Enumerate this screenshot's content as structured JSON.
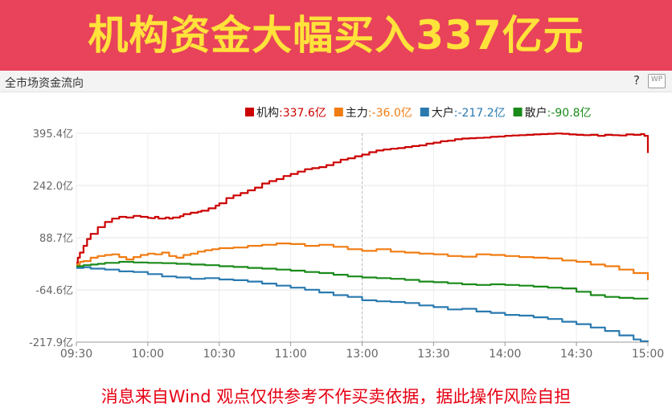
{
  "banner": {
    "title": "机构资金大幅买入337亿元"
  },
  "chart_header": {
    "title": "全市场资金流向",
    "help_label": "?",
    "wp_label": "WP"
  },
  "footer": {
    "text": "消息来自Wind  观点仅供参考不作买卖依据，据此操作风险自担"
  },
  "chart_data": {
    "type": "line",
    "title": "",
    "xlabel": "",
    "ylabel": "",
    "y_ticks": [
      "395.4亿",
      "242.0亿",
      "88.7亿",
      "-64.6亿",
      "-217.9亿"
    ],
    "y_tick_values": [
      395.4,
      242.0,
      88.7,
      -64.6,
      -217.9
    ],
    "ylim": [
      -217.9,
      395.4
    ],
    "x_ticks": [
      "09:30",
      "10:00",
      "10:30",
      "11:00",
      "13:00",
      "13:30",
      "14:00",
      "14:30",
      "15:00"
    ],
    "grid": true,
    "legend_position": "top-right",
    "legend": [
      {
        "name": "机构",
        "value_label": ":337.6亿",
        "color": "#cc0000"
      },
      {
        "name": "主力",
        "value_label": ":-36.0亿",
        "color": "#f07c12"
      },
      {
        "name": "大户",
        "value_label": ":-217.2亿",
        "color": "#2a7ab0"
      },
      {
        "name": "散户",
        "value_label": ":-90.8亿",
        "color": "#1a8a1a"
      }
    ],
    "series": [
      {
        "name": "机构",
        "color": "#cc0000",
        "x": [
          0,
          0.02,
          0.05,
          0.1,
          0.15,
          0.2,
          0.3,
          0.4,
          0.5,
          0.6,
          0.7,
          0.8,
          0.9,
          1.0,
          1.05,
          1.1,
          1.15,
          1.25,
          1.3,
          1.35,
          1.45,
          1.5,
          1.6,
          1.7,
          1.75,
          1.85,
          1.95,
          2.0,
          2.1,
          2.2,
          2.3,
          2.4,
          2.5,
          2.6,
          2.7,
          2.8,
          2.9,
          3.0,
          3.1,
          3.2,
          3.3,
          3.4,
          3.5,
          3.6,
          3.7,
          3.8,
          3.9,
          4.0,
          4.1,
          4.2,
          4.3,
          4.4,
          4.5,
          4.6,
          4.7,
          4.8,
          4.9,
          5.0,
          5.1,
          5.2,
          5.3,
          5.4,
          5.5,
          5.6,
          5.7,
          5.8,
          5.9,
          6.0,
          6.1,
          6.2,
          6.3,
          6.4,
          6.5,
          6.6,
          6.7,
          6.8,
          6.9,
          7.0,
          7.1,
          7.2,
          7.3,
          7.4,
          7.5,
          7.6,
          7.7,
          7.8,
          7.9,
          7.95,
          8.0
        ],
        "y": [
          15,
          30,
          45,
          65,
          85,
          100,
          120,
          135,
          145,
          150,
          148,
          153,
          150,
          147,
          146,
          150,
          145,
          148,
          145,
          148,
          152,
          158,
          162,
          165,
          168,
          175,
          183,
          190,
          205,
          213,
          220,
          228,
          236,
          248,
          255,
          261,
          270,
          276,
          283,
          290,
          293,
          296,
          302,
          310,
          318,
          322,
          328,
          333,
          340,
          345,
          348,
          350,
          352,
          355,
          358,
          360,
          365,
          368,
          372,
          374,
          378,
          380,
          381,
          382,
          383,
          385,
          386,
          388,
          389,
          390,
          391,
          392,
          393,
          394,
          395,
          394,
          392,
          391,
          390,
          391,
          388,
          391,
          390,
          389,
          392,
          391,
          393,
          388,
          337.6
        ]
      },
      {
        "name": "主力",
        "color": "#f07c12",
        "x": [
          0,
          0.05,
          0.1,
          0.2,
          0.3,
          0.4,
          0.5,
          0.6,
          0.7,
          0.8,
          0.9,
          1.0,
          1.1,
          1.2,
          1.3,
          1.4,
          1.5,
          1.6,
          1.7,
          1.8,
          1.9,
          2.0,
          2.2,
          2.4,
          2.6,
          2.8,
          3.0,
          3.2,
          3.4,
          3.6,
          3.8,
          4.0,
          4.2,
          4.4,
          4.6,
          4.8,
          5.0,
          5.2,
          5.4,
          5.6,
          5.8,
          6.0,
          6.2,
          6.4,
          6.6,
          6.8,
          7.0,
          7.2,
          7.4,
          7.6,
          7.8,
          8.0
        ],
        "y": [
          10,
          18,
          20,
          30,
          35,
          38,
          40,
          32,
          25,
          32,
          38,
          42,
          40,
          45,
          35,
          30,
          38,
          42,
          48,
          52,
          55,
          58,
          60,
          65,
          68,
          72,
          70,
          65,
          68,
          62,
          55,
          50,
          55,
          48,
          45,
          42,
          40,
          35,
          33,
          40,
          38,
          35,
          32,
          30,
          28,
          22,
          18,
          10,
          5,
          -5,
          -15,
          -36
        ]
      },
      {
        "name": "大户",
        "color": "#2a7ab0",
        "x": [
          0,
          0.1,
          0.2,
          0.4,
          0.6,
          0.8,
          1.0,
          1.2,
          1.4,
          1.6,
          1.8,
          2.0,
          2.2,
          2.4,
          2.6,
          2.8,
          3.0,
          3.2,
          3.4,
          3.6,
          3.8,
          4.0,
          4.2,
          4.4,
          4.6,
          4.8,
          5.0,
          5.2,
          5.4,
          5.6,
          5.8,
          6.0,
          6.2,
          6.4,
          6.6,
          6.8,
          7.0,
          7.2,
          7.4,
          7.6,
          7.8,
          7.9,
          8.0
        ],
        "y": [
          0,
          2,
          -2,
          -5,
          -10,
          -12,
          -18,
          -25,
          -28,
          -32,
          -30,
          -34,
          -36,
          -40,
          -46,
          -52,
          -58,
          -64,
          -72,
          -80,
          -85,
          -95,
          -98,
          -100,
          -103,
          -110,
          -115,
          -122,
          -120,
          -128,
          -132,
          -138,
          -140,
          -145,
          -150,
          -158,
          -165,
          -175,
          -185,
          -198,
          -210,
          -215,
          -217.2
        ]
      },
      {
        "name": "散户",
        "color": "#1a8a1a",
        "x": [
          0,
          0.1,
          0.2,
          0.3,
          0.4,
          0.6,
          0.8,
          1.0,
          1.2,
          1.4,
          1.6,
          1.8,
          2.0,
          2.2,
          2.4,
          2.6,
          2.8,
          3.0,
          3.2,
          3.4,
          3.6,
          3.8,
          4.0,
          4.2,
          4.4,
          4.6,
          4.8,
          5.0,
          5.2,
          5.4,
          5.6,
          5.8,
          6.0,
          6.2,
          6.4,
          6.6,
          6.8,
          7.0,
          7.2,
          7.4,
          7.6,
          7.8,
          8.0
        ],
        "y": [
          5,
          8,
          10,
          12,
          15,
          18,
          16,
          15,
          14,
          12,
          10,
          8,
          5,
          3,
          0,
          -2,
          -5,
          -8,
          -12,
          -15,
          -20,
          -25,
          -28,
          -30,
          -32,
          -35,
          -40,
          -42,
          -45,
          -48,
          -50,
          -48,
          -50,
          -52,
          -55,
          -58,
          -60,
          -70,
          -80,
          -85,
          -88,
          -90,
          -90.8
        ]
      }
    ]
  }
}
